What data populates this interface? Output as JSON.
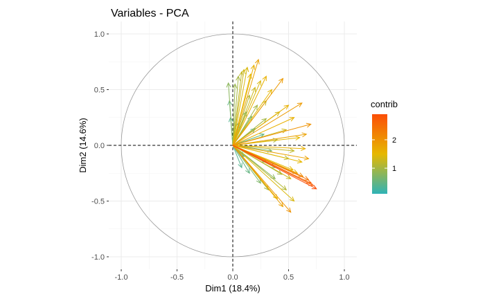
{
  "chart_data": {
    "type": "scatter",
    "subtype": "pca-variable-correlation-circle",
    "title": "Variables - PCA",
    "xlabel": "Dim1 (18.4%)",
    "ylabel": "Dim2 (14.6%)",
    "xlim": [
      -1.1,
      1.1
    ],
    "ylim": [
      -1.1,
      1.1
    ],
    "xticks": [
      "-1.0",
      "-0.5",
      "0.0",
      "0.5",
      "1.0"
    ],
    "yticks": [
      "-1.0",
      "-0.5",
      "0.0",
      "0.5",
      "1.0"
    ],
    "grid": true,
    "unit_circle": true,
    "reference_lines": {
      "x": 0,
      "y": 0,
      "style": "dashed"
    },
    "legend": {
      "title": "contrib",
      "placement": "right",
      "range": [
        0.1,
        2.9
      ],
      "ticks": [
        "1",
        "2"
      ],
      "colors": [
        "#2fb3b6",
        "#e6b800",
        "#fc4e07"
      ]
    },
    "arrows": [
      {
        "x": 0.23,
        "y": 0.77,
        "c": 1.8
      },
      {
        "x": 0.19,
        "y": 0.72,
        "c": 1.6
      },
      {
        "x": 0.13,
        "y": 0.7,
        "c": 1.4
      },
      {
        "x": 0.1,
        "y": 0.68,
        "c": 1.3
      },
      {
        "x": 0.08,
        "y": 0.66,
        "c": 1.2
      },
      {
        "x": 0.16,
        "y": 0.64,
        "c": 1.5
      },
      {
        "x": 0.05,
        "y": 0.62,
        "c": 1.0
      },
      {
        "x": 0.3,
        "y": 0.62,
        "c": 1.6
      },
      {
        "x": -0.04,
        "y": 0.56,
        "c": 0.8
      },
      {
        "x": 0.45,
        "y": 0.6,
        "c": 1.9
      },
      {
        "x": 0.25,
        "y": 0.58,
        "c": 1.4
      },
      {
        "x": 0.02,
        "y": 0.55,
        "c": 0.9
      },
      {
        "x": 0.2,
        "y": 0.52,
        "c": 1.3
      },
      {
        "x": 0.35,
        "y": 0.5,
        "c": 1.5
      },
      {
        "x": 0.62,
        "y": 0.38,
        "c": 1.9
      },
      {
        "x": -0.03,
        "y": 0.4,
        "c": 0.5
      },
      {
        "x": 0.15,
        "y": 0.45,
        "c": 1.1
      },
      {
        "x": 0.5,
        "y": 0.36,
        "c": 1.6
      },
      {
        "x": 0.3,
        "y": 0.4,
        "c": 1.2
      },
      {
        "x": 0.7,
        "y": 0.19,
        "c": 2.0
      },
      {
        "x": 0.55,
        "y": 0.25,
        "c": 1.6
      },
      {
        "x": 0.42,
        "y": 0.3,
        "c": 1.3
      },
      {
        "x": 0.22,
        "y": 0.36,
        "c": 1.0
      },
      {
        "x": 0.66,
        "y": 0.1,
        "c": 1.8
      },
      {
        "x": 0.6,
        "y": 0.07,
        "c": 1.5
      },
      {
        "x": 0.48,
        "y": 0.14,
        "c": 1.3
      },
      {
        "x": 0.3,
        "y": 0.24,
        "c": 1.0
      },
      {
        "x": 0.17,
        "y": 0.26,
        "c": 0.6
      },
      {
        "x": 0.65,
        "y": -0.03,
        "c": 1.6
      },
      {
        "x": 0.55,
        "y": -0.05,
        "c": 1.2
      },
      {
        "x": 0.4,
        "y": 0.05,
        "c": 1.0
      },
      {
        "x": 0.68,
        "y": -0.12,
        "c": 1.8
      },
      {
        "x": 0.62,
        "y": -0.15,
        "c": 1.5
      },
      {
        "x": 0.5,
        "y": -0.12,
        "c": 1.1
      },
      {
        "x": 0.35,
        "y": -0.05,
        "c": 0.7
      },
      {
        "x": 0.75,
        "y": -0.39,
        "c": 2.9
      },
      {
        "x": 0.72,
        "y": -0.36,
        "c": 2.7
      },
      {
        "x": 0.7,
        "y": -0.34,
        "c": 2.6
      },
      {
        "x": 0.68,
        "y": -0.31,
        "c": 2.4
      },
      {
        "x": 0.63,
        "y": -0.28,
        "c": 2.1
      },
      {
        "x": 0.58,
        "y": -0.25,
        "c": 1.7
      },
      {
        "x": 0.54,
        "y": -0.22,
        "c": 1.5
      },
      {
        "x": 0.52,
        "y": -0.3,
        "c": 1.3
      },
      {
        "x": 0.44,
        "y": -0.26,
        "c": 1.0
      },
      {
        "x": 0.38,
        "y": -0.2,
        "c": 0.8
      },
      {
        "x": 0.3,
        "y": -0.15,
        "c": 0.6
      },
      {
        "x": 0.52,
        "y": -0.6,
        "c": 2.0
      },
      {
        "x": 0.45,
        "y": -0.55,
        "c": 1.8
      },
      {
        "x": 0.4,
        "y": -0.48,
        "c": 1.5
      },
      {
        "x": 0.55,
        "y": -0.5,
        "c": 1.4
      },
      {
        "x": 0.48,
        "y": -0.4,
        "c": 1.1
      },
      {
        "x": 0.32,
        "y": -0.4,
        "c": 1.0
      },
      {
        "x": 0.25,
        "y": -0.34,
        "c": 0.7
      },
      {
        "x": 0.15,
        "y": -0.25,
        "c": 0.5
      },
      {
        "x": 0.08,
        "y": -0.2,
        "c": 0.4
      },
      {
        "x": 0.38,
        "y": -0.3,
        "c": 0.8
      },
      {
        "x": 0.12,
        "y": 0.3,
        "c": 0.5
      },
      {
        "x": 0.05,
        "y": 0.2,
        "c": 0.3
      },
      {
        "x": -0.02,
        "y": 0.25,
        "c": 0.4
      },
      {
        "x": 0.2,
        "y": 0.15,
        "c": 0.4
      },
      {
        "x": 0.28,
        "y": 0.1,
        "c": 0.5
      },
      {
        "x": 0.1,
        "y": -0.1,
        "c": 0.3
      }
    ]
  }
}
